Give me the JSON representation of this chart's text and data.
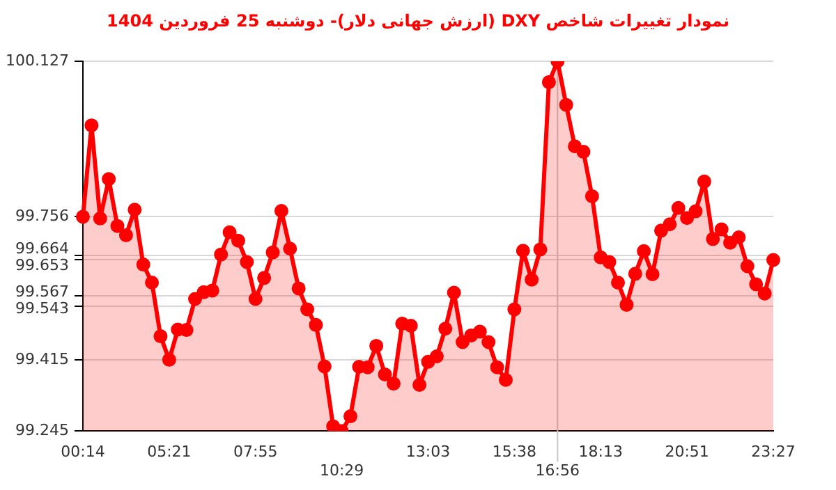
{
  "chart_data": {
    "type": "area",
    "title": "نمودار تغییرات شاخص DXY (ارزش جهانی دلار)- دوشنبه  25 فروردین 1404",
    "categories": [
      "00:14",
      null,
      null,
      null,
      null,
      null,
      null,
      null,
      null,
      null,
      "05:21",
      null,
      null,
      null,
      null,
      null,
      null,
      null,
      null,
      null,
      "07:55",
      null,
      null,
      null,
      null,
      null,
      null,
      null,
      null,
      null,
      "10:29",
      null,
      null,
      null,
      null,
      null,
      null,
      null,
      null,
      null,
      "13:03",
      null,
      null,
      null,
      null,
      null,
      null,
      null,
      null,
      null,
      "15:38",
      null,
      null,
      null,
      null,
      "16:56",
      null,
      null,
      null,
      null,
      "18:13",
      null,
      null,
      null,
      null,
      null,
      null,
      null,
      null,
      null,
      "20:51",
      null,
      null,
      null,
      null,
      null,
      null,
      null,
      null,
      null,
      "23:27"
    ],
    "series": [
      {
        "color": "#ff0000",
        "values": [
          99.756,
          99.974,
          99.752,
          99.846,
          99.734,
          99.712,
          99.773,
          99.642,
          99.599,
          99.471,
          99.415,
          99.487,
          99.486,
          99.56,
          99.576,
          99.58,
          99.666,
          99.719,
          99.699,
          99.648,
          99.56,
          99.61,
          99.671,
          99.77,
          99.68,
          99.585,
          99.535,
          99.498,
          99.399,
          99.256,
          99.245,
          99.28,
          99.398,
          99.397,
          99.448,
          99.38,
          99.358,
          99.501,
          99.496,
          99.355,
          99.41,
          99.423,
          99.489,
          99.575,
          99.457,
          99.473,
          99.482,
          99.457,
          99.397,
          99.367,
          99.535,
          99.675,
          99.606,
          99.678,
          100.077,
          100.127,
          100.023,
          99.924,
          99.911,
          99.805,
          99.659,
          99.648,
          99.599,
          99.546,
          99.62,
          99.674,
          99.619,
          99.723,
          99.738,
          99.777,
          99.753,
          99.769,
          99.84,
          99.703,
          99.726,
          99.694,
          99.707,
          99.638,
          99.595,
          99.573,
          99.653
        ]
      }
    ],
    "ylim": [
      99.245,
      100.127
    ],
    "yticks": [
      99.245,
      99.415,
      99.543,
      99.567,
      99.653,
      99.664,
      99.756,
      100.127
    ],
    "grid": "y",
    "marker": "circle",
    "line_style": "solid",
    "ref_lines": [
      {
        "axis": "x",
        "value": "16:56",
        "color": "#c8c8c8"
      }
    ]
  }
}
